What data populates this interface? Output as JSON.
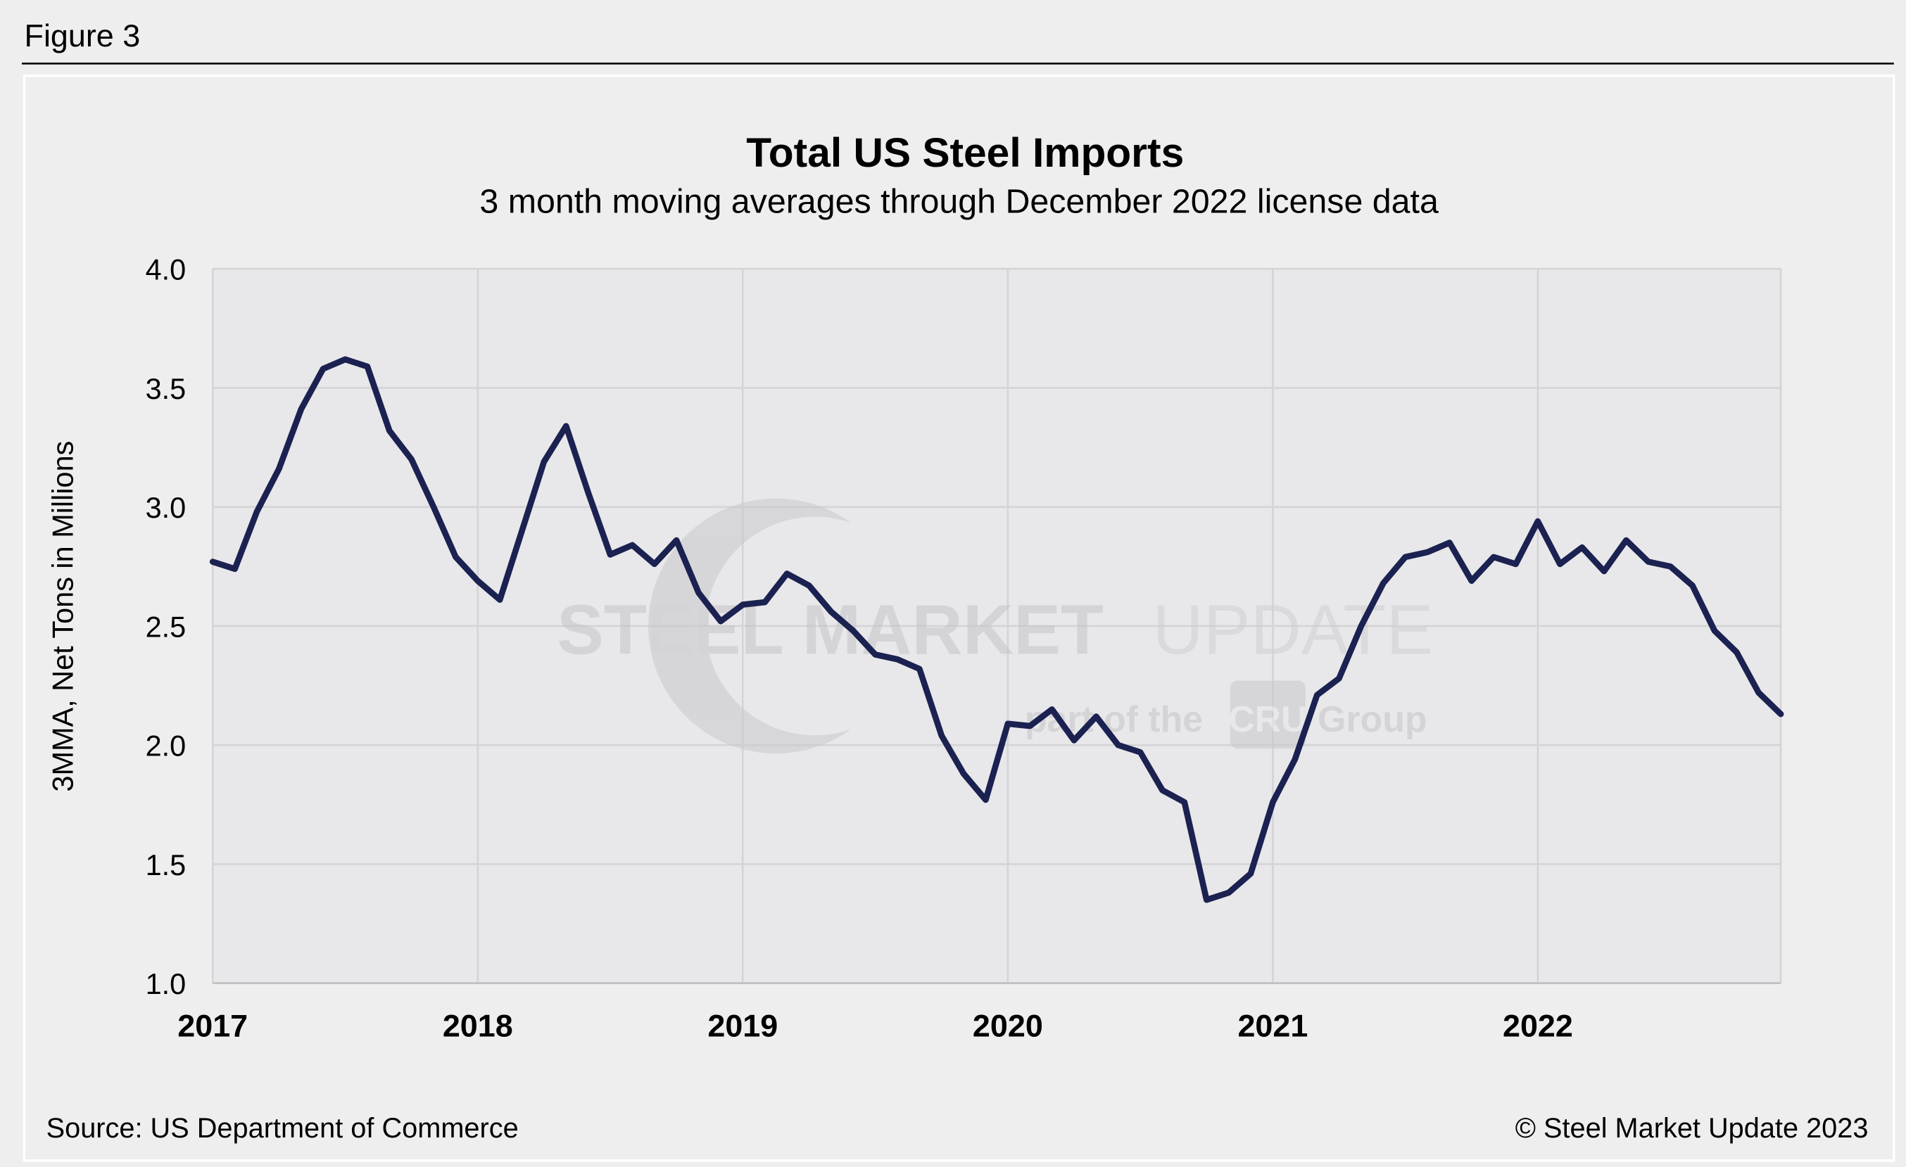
{
  "figure_label": "Figure 3",
  "source": "Source: US Department of Commerce",
  "copyright": "© Steel Market Update 2023",
  "watermark": {
    "line1a": "STEEL MARKET",
    "line1b": "UPDATE",
    "line2a": "part of the",
    "line2b": "CRU",
    "line2c": "Group"
  },
  "colors": {
    "line": "#1b2150",
    "plot_bg": "#e8e8ea",
    "page_bg": "#eeeeee",
    "grid": "#d4d4d6"
  },
  "chart_data": {
    "type": "line",
    "title": "Total US Steel Imports",
    "subtitle": "3 month moving averages through December 2022 license data",
    "xlabel": "",
    "ylabel": "3MMA, Net Tons in Millions",
    "ylim": [
      1.0,
      4.0
    ],
    "yticks": [
      "1.0",
      "1.5",
      "2.0",
      "2.5",
      "3.0",
      "3.5",
      "4.0"
    ],
    "xticks": [
      "2017",
      "2018",
      "2019",
      "2020",
      "2021",
      "2022"
    ],
    "grid": true,
    "legend": "none",
    "x_start": "2017-01",
    "x_frequency": "monthly",
    "values": [
      2.77,
      2.74,
      2.98,
      3.16,
      3.41,
      3.58,
      3.62,
      3.59,
      3.32,
      3.2,
      3.0,
      2.79,
      2.69,
      2.61,
      2.9,
      3.19,
      3.34,
      3.06,
      2.8,
      2.84,
      2.76,
      2.86,
      2.64,
      2.52,
      2.59,
      2.6,
      2.72,
      2.67,
      2.56,
      2.48,
      2.38,
      2.36,
      2.32,
      2.04,
      1.88,
      1.77,
      2.09,
      2.08,
      2.15,
      2.02,
      2.12,
      2.0,
      1.97,
      1.81,
      1.76,
      1.35,
      1.38,
      1.46,
      1.76,
      1.94,
      2.21,
      2.28,
      2.5,
      2.68,
      2.79,
      2.81,
      2.85,
      2.69,
      2.79,
      2.76,
      2.94,
      2.76,
      2.83,
      2.73,
      2.86,
      2.77,
      2.75,
      2.67,
      2.48,
      2.39,
      2.22,
      2.13
    ]
  }
}
